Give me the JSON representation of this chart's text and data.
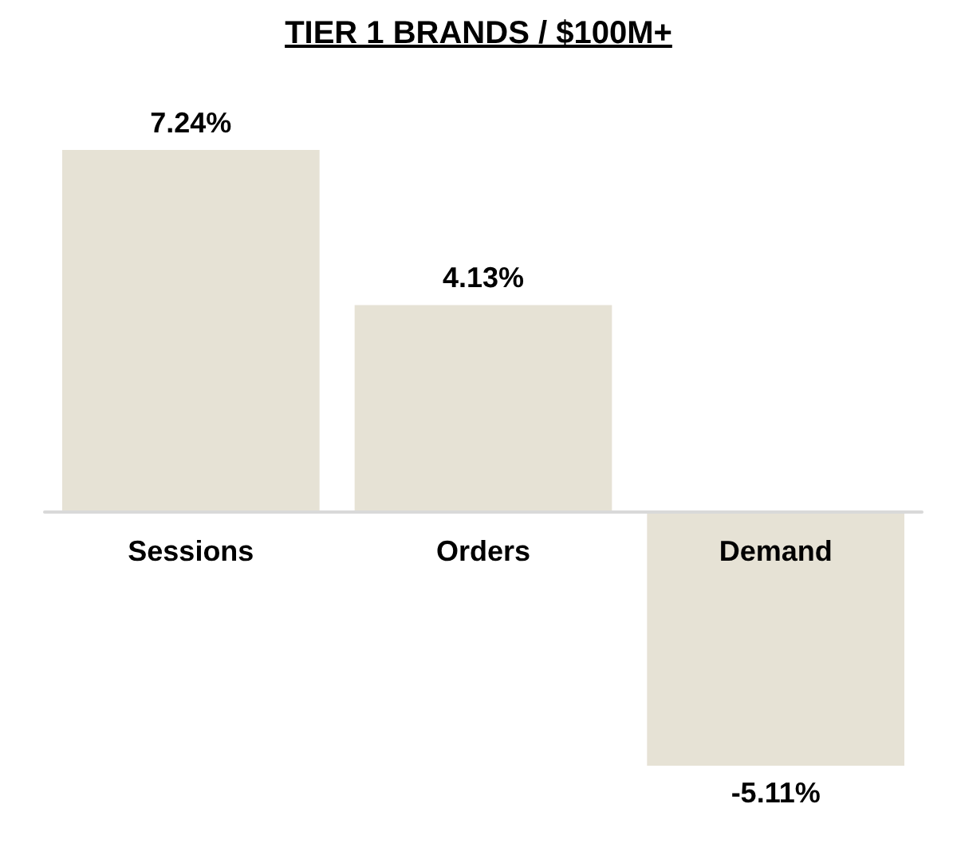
{
  "chart_data": {
    "type": "bar",
    "title": "TIER 1 BRANDS / $100M+",
    "categories": [
      "Sessions",
      "Orders",
      "Demand"
    ],
    "values": [
      7.24,
      4.13,
      -5.11
    ],
    "value_labels": [
      "7.24%",
      "4.13%",
      "-5.11%"
    ],
    "color": "#e6e2d5"
  }
}
